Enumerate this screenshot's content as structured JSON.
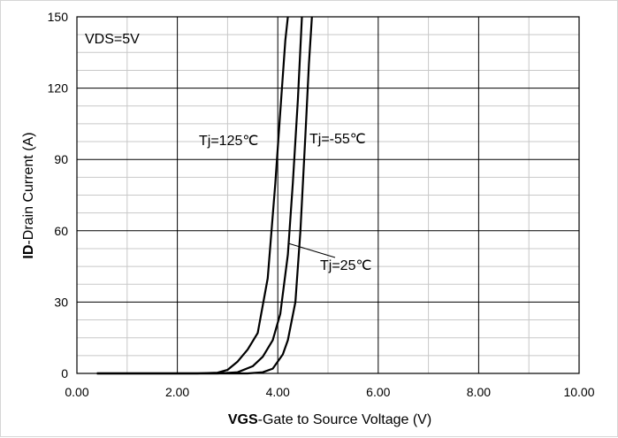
{
  "chart_data": {
    "type": "line",
    "xlabel_bold": "VGS",
    "xlabel_rest": "-Gate to Source Voltage (V)",
    "ylabel_bold": "ID",
    "ylabel_rest": "-Drain Current (A)",
    "xlim": [
      0,
      10
    ],
    "ylim": [
      0,
      150
    ],
    "x_ticks": [
      "0.00",
      "2.00",
      "4.00",
      "6.00",
      "8.00",
      "10.00"
    ],
    "y_ticks": [
      "0",
      "30",
      "60",
      "90",
      "120",
      "150"
    ],
    "grid": true,
    "condition_label": "VDS=5V",
    "series": [
      {
        "name": "Tj=125℃",
        "points": [
          [
            0.4,
            0
          ],
          [
            2.4,
            0
          ],
          [
            2.8,
            0.3
          ],
          [
            3.0,
            1.5
          ],
          [
            3.2,
            5
          ],
          [
            3.4,
            10
          ],
          [
            3.6,
            17
          ],
          [
            3.8,
            40
          ],
          [
            3.95,
            80
          ],
          [
            4.05,
            110
          ],
          [
            4.15,
            140
          ],
          [
            4.2,
            150
          ]
        ]
      },
      {
        "name": "Tj=25℃",
        "points": [
          [
            0.4,
            0
          ],
          [
            2.8,
            0
          ],
          [
            3.2,
            0.5
          ],
          [
            3.5,
            3
          ],
          [
            3.7,
            7
          ],
          [
            3.9,
            14
          ],
          [
            4.05,
            25
          ],
          [
            4.2,
            50
          ],
          [
            4.3,
            80
          ],
          [
            4.4,
            115
          ],
          [
            4.48,
            150
          ]
        ]
      },
      {
        "name": "Tj=-55℃",
        "points": [
          [
            0.4,
            0
          ],
          [
            3.4,
            0
          ],
          [
            3.7,
            0.5
          ],
          [
            3.9,
            2
          ],
          [
            4.1,
            8
          ],
          [
            4.2,
            14
          ],
          [
            4.35,
            30
          ],
          [
            4.45,
            60
          ],
          [
            4.55,
            100
          ],
          [
            4.62,
            130
          ],
          [
            4.68,
            150
          ]
        ]
      }
    ],
    "labels": [
      "Tj=125℃",
      "Tj=-55℃",
      "Tj=25℃"
    ]
  }
}
